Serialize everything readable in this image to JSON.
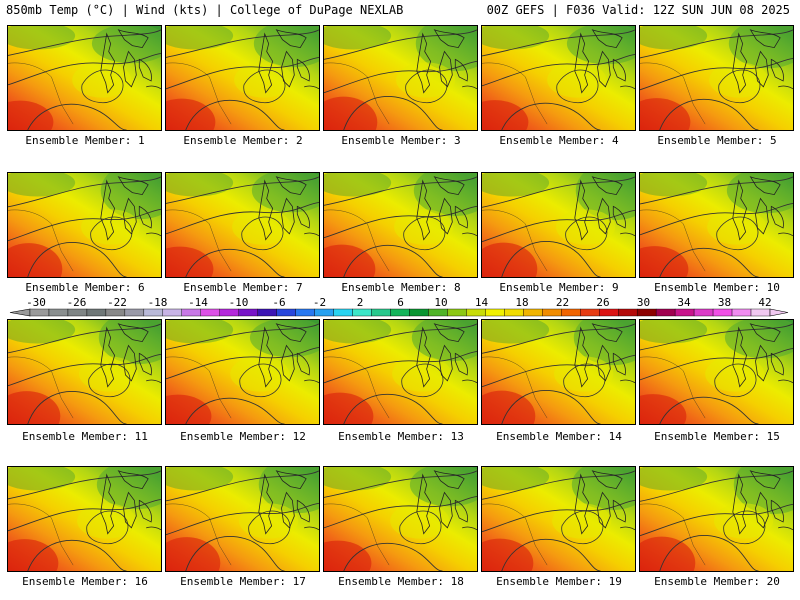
{
  "header": {
    "left": "850mb Temp (°C) | Wind (kts) | College of DuPage NEXLAB",
    "right": "00Z GEFS | F036 Valid: 12Z SUN JUN 08 2025"
  },
  "members": [
    {
      "label": "Ensemble Member: 1"
    },
    {
      "label": "Ensemble Member: 2"
    },
    {
      "label": "Ensemble Member: 3"
    },
    {
      "label": "Ensemble Member: 4"
    },
    {
      "label": "Ensemble Member: 5"
    },
    {
      "label": "Ensemble Member: 6"
    },
    {
      "label": "Ensemble Member: 7"
    },
    {
      "label": "Ensemble Member: 8"
    },
    {
      "label": "Ensemble Member: 9"
    },
    {
      "label": "Ensemble Member: 10"
    },
    {
      "label": "Ensemble Member: 11"
    },
    {
      "label": "Ensemble Member: 12"
    },
    {
      "label": "Ensemble Member: 13"
    },
    {
      "label": "Ensemble Member: 14"
    },
    {
      "label": "Ensemble Member: 15"
    },
    {
      "label": "Ensemble Member: 16"
    },
    {
      "label": "Ensemble Member: 17"
    },
    {
      "label": "Ensemble Member: 18"
    },
    {
      "label": "Ensemble Member: 19"
    },
    {
      "label": "Ensemble Member: 20"
    }
  ],
  "colorbar": {
    "labels": [
      "-30",
      "-26",
      "-22",
      "-18",
      "-14",
      "-10",
      "-6",
      "-2",
      "2",
      "6",
      "10",
      "14",
      "18",
      "22",
      "26",
      "30",
      "34",
      "38",
      "42"
    ],
    "colors": [
      "#9a9a9a",
      "#8a8f8f",
      "#7f8585",
      "#6f7777",
      "#888888",
      "#9a9aa8",
      "#b9b9d8",
      "#c8b4e6",
      "#c878e6",
      "#dc50e6",
      "#b428dc",
      "#7814c8",
      "#3c14b4",
      "#2846dc",
      "#2878f0",
      "#28a0f0",
      "#28d2f0",
      "#3ce6c8",
      "#28c88c",
      "#14b45a",
      "#0a9632",
      "#50b428",
      "#8cc814",
      "#c8dc0a",
      "#f0f000",
      "#f0dc00",
      "#f0b400",
      "#f08c00",
      "#f06400",
      "#e63c14",
      "#dc1414",
      "#b40a0a",
      "#8c0000",
      "#a00050",
      "#c8148c",
      "#dc3cc8",
      "#f050e6",
      "#f08cf0",
      "#f0c8f0"
    ]
  }
}
